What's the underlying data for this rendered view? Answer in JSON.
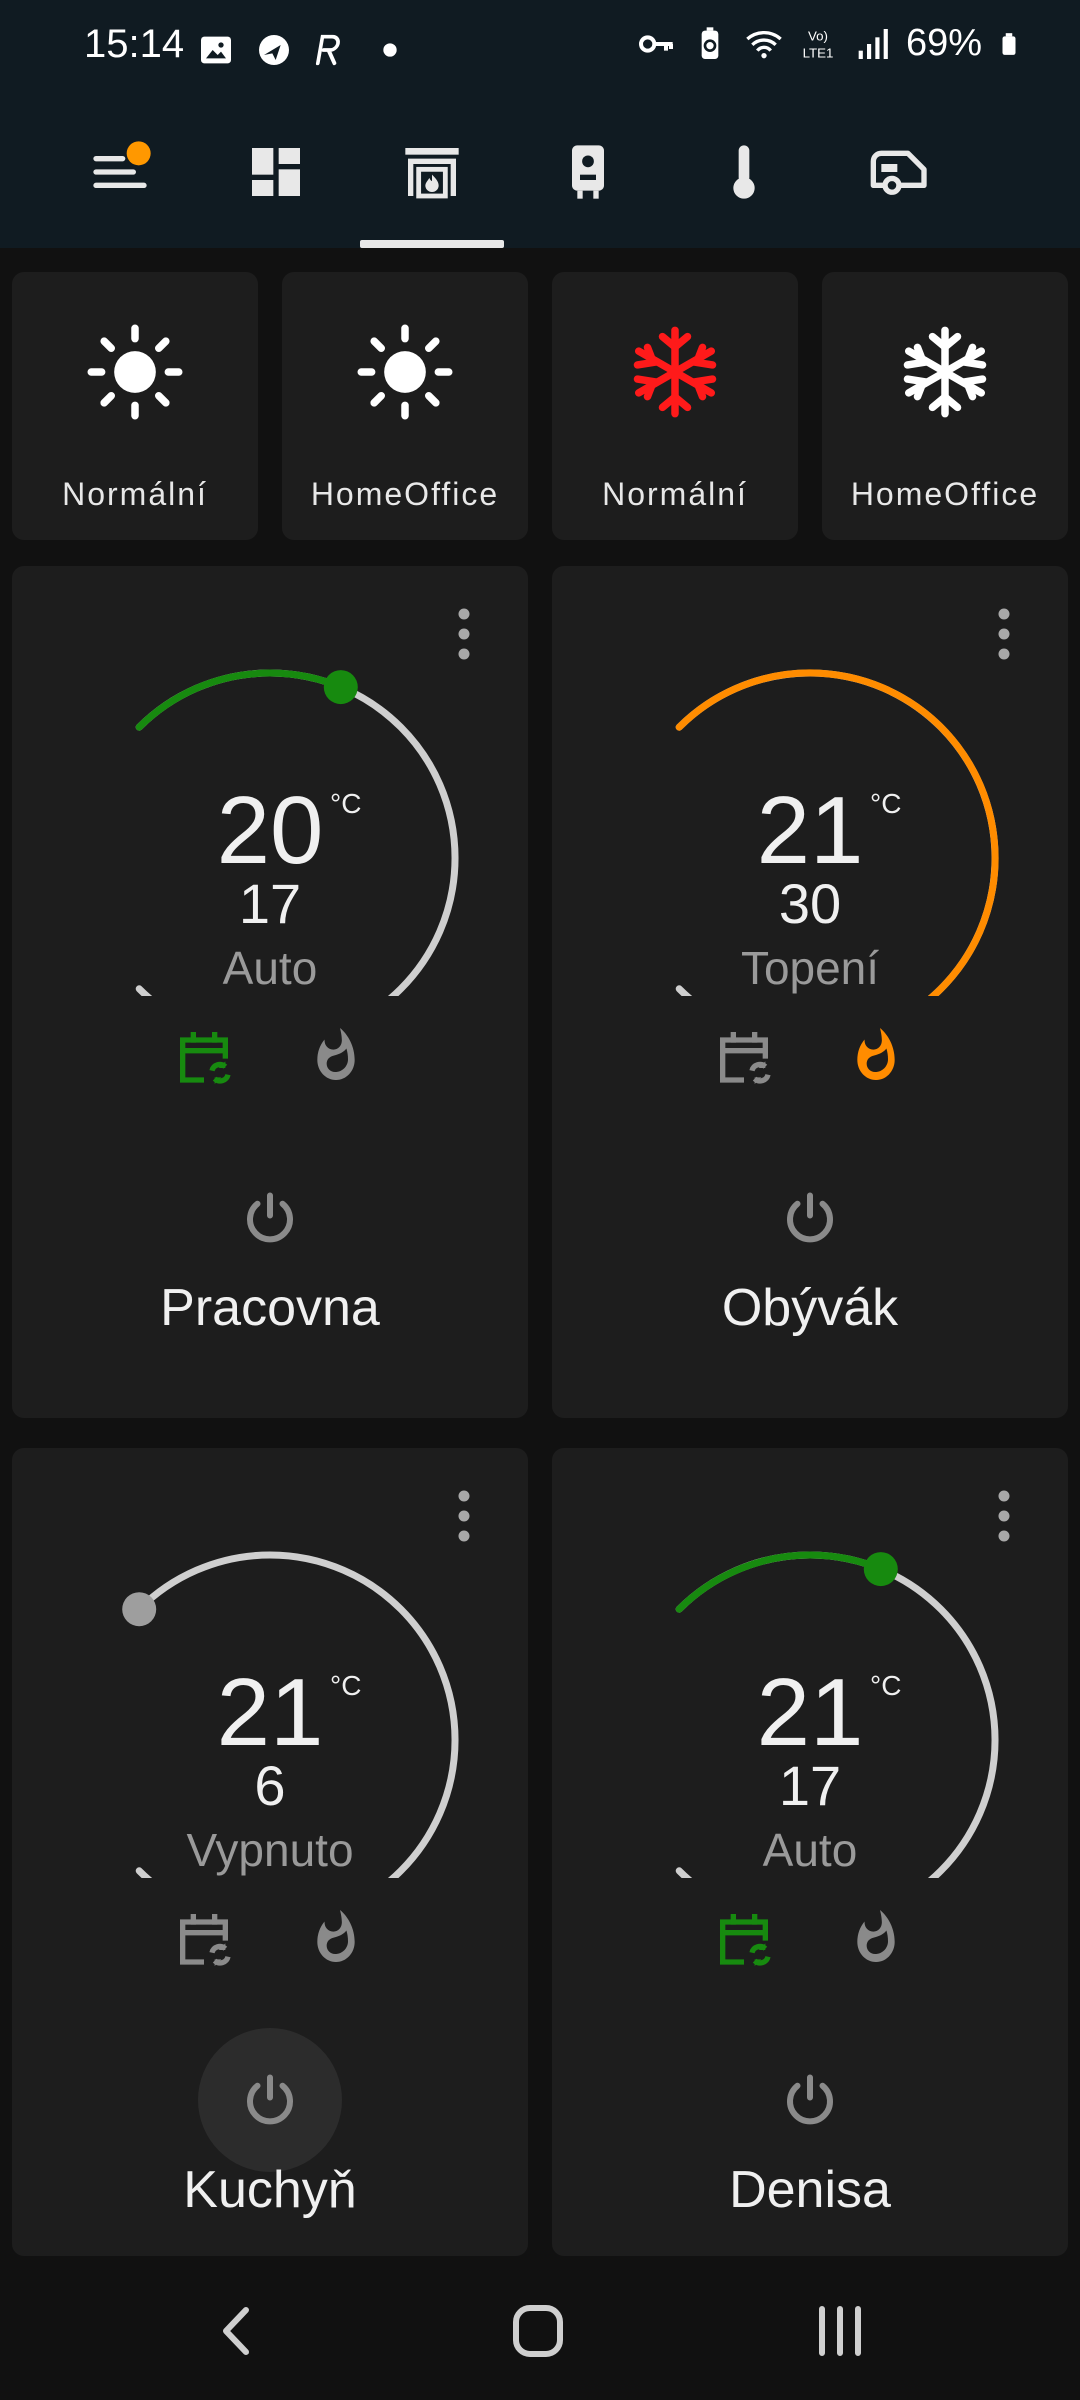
{
  "status_bar": {
    "time": "15:14",
    "battery": "69%",
    "left_icons": [
      "image-icon",
      "nav-app-icon",
      "r-app-icon",
      "dot-icon"
    ],
    "right_icons": [
      "key-icon",
      "battery-saver-icon",
      "wifi-icon",
      "volte-icon",
      "signal-icon",
      "battery-icon"
    ]
  },
  "nav_tabs": [
    {
      "icon": "menu-icon",
      "badge": true
    },
    {
      "icon": "dashboard-icon"
    },
    {
      "icon": "fireplace-icon",
      "active": true
    },
    {
      "icon": "boiler-icon"
    },
    {
      "icon": "thermometer-icon"
    },
    {
      "icon": "caravan-icon"
    }
  ],
  "modes": [
    {
      "label": "Normální",
      "icon": "sun-icon",
      "color": "#ffffff"
    },
    {
      "label": "HomeOffice",
      "icon": "sun-icon",
      "color": "#ffffff"
    },
    {
      "label": "Normální",
      "icon": "snowflake-icon",
      "color": "#ff1a1a"
    },
    {
      "label": "HomeOffice",
      "icon": "snowflake-icon",
      "color": "#ffffff"
    }
  ],
  "thermostats": [
    {
      "room": "Pracovna",
      "target": "20",
      "unit": "°C",
      "current": "17",
      "mode": "Auto",
      "setpoint_fraction": 0.25,
      "arc_color": "#178a0f",
      "schedule_color": "#178a0f",
      "flame_color": "#8a8a8a"
    },
    {
      "room": "Obývák",
      "target": "21",
      "unit": "°C",
      "current": "30",
      "mode": "Topení",
      "setpoint_fraction": 0.75,
      "arc_color": "#ff8c00",
      "schedule_color": "#8a8a8a",
      "flame_color": "#ff8c00"
    },
    {
      "room": "Kuchyň",
      "target": "21",
      "unit": "°C",
      "current": "6",
      "mode": "Vypnuto",
      "setpoint_fraction": 0.0,
      "arc_color": "#cfcfcf",
      "schedule_color": "#8a8a8a",
      "flame_color": "#8a8a8a"
    },
    {
      "room": "Denisa",
      "target": "21",
      "unit": "°C",
      "current": "17",
      "mode": "Auto",
      "setpoint_fraction": 0.25,
      "arc_color": "#178a0f",
      "schedule_color": "#178a0f",
      "flame_color": "#8a8a8a"
    }
  ],
  "colors": {
    "background": "#111111",
    "card": "#1d1d1d",
    "header": "#101b22",
    "badge": "#ff9800",
    "inactive_arc": "#cfcfcf"
  }
}
